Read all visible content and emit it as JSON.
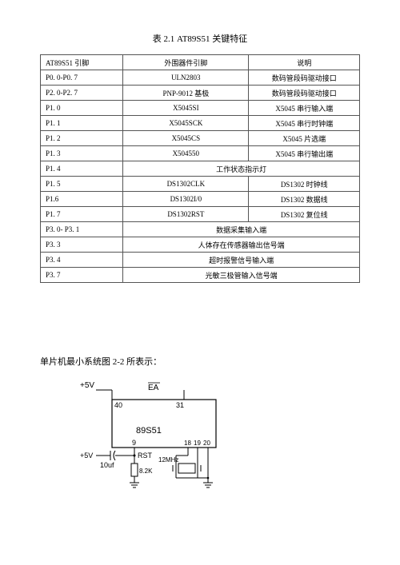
{
  "table_title": "表 2.1 AT89S51 关键特征",
  "headers": {
    "c1": "AT89S51 引脚",
    "c2": "外围器件引脚",
    "c3": "说明"
  },
  "rows": [
    {
      "c1": "P0. 0-P0. 7",
      "c2": "ULN2803",
      "c3": "数码管段码驱动接口",
      "span": 1
    },
    {
      "c1": "P2. 0-P2. 7",
      "c2": "PNP-9012 基极",
      "c3": "数码管段码驱动接口",
      "span": 1
    },
    {
      "c1": "P1. 0",
      "c2": "X5045SI",
      "c3": "X5045 串行输入端",
      "span": 1
    },
    {
      "c1": "P1. 1",
      "c2": "X5045SCK",
      "c3": "X5045 串行时钟端",
      "span": 1
    },
    {
      "c1": "P1. 2",
      "c2": "X5045CS",
      "c3": "X5045 片选端",
      "span": 1
    },
    {
      "c1": "P1. 3",
      "c2": "X504550",
      "c3": "X5045 串行输出端",
      "span": 1
    },
    {
      "c1": "P1. 4",
      "c23": "工作状态指示灯",
      "span": 2
    },
    {
      "c1": "P1. 5",
      "c2": "DS1302CLK",
      "c3": "DS1302 时钟线",
      "span": 1
    },
    {
      "c1": "P1.6",
      "c2": "DS1302I/0",
      "c3": "DS1302 数据线",
      "span": 1
    },
    {
      "c1": "P1. 7",
      "c2": "DS1302RST",
      "c3": "DS1302 复位线",
      "span": 1
    },
    {
      "c1": "P3. 0- P3. 1",
      "c23": "数据采集输入端",
      "span": 2
    },
    {
      "c1": "P3. 3",
      "c23": "人体存在传感器输出信号端",
      "span": 2
    },
    {
      "c1": "P3. 4",
      "c23": "超时报警信号输入端",
      "span": 2
    },
    {
      "c1": "P3. 7",
      "c23": "光敏三极管输入信号端",
      "span": 2
    }
  ],
  "caption2": "单片机最小系统图 2-2 所表示：",
  "diagram": {
    "vcc": "+5V",
    "ea_bar": "EA",
    "pin40": "40",
    "pin31": "31",
    "pin9": "9",
    "pin18": "18",
    "pin19": "19",
    "pin20": "20",
    "chip": "89S51",
    "rst": "RST",
    "cap": "10uf",
    "res": "8.2K",
    "xtal": "12MHz",
    "stroke": "#000000",
    "bg": "#ffffff"
  }
}
